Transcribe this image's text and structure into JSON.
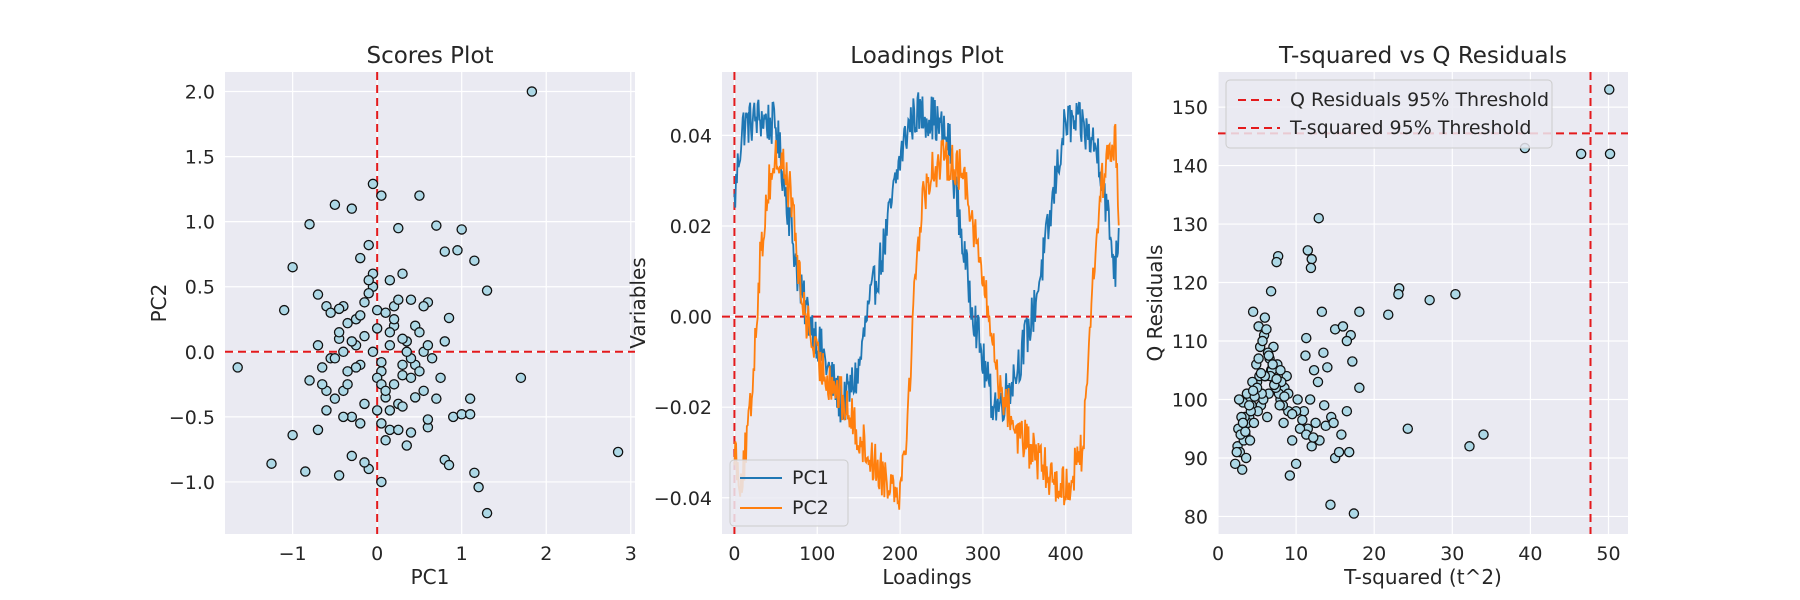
{
  "colors": {
    "axes_bg": "#eaeaf2",
    "grid": "#ffffff",
    "reference": "#e41a1c",
    "points_fill": "#add8e6",
    "points_edge": "#111111",
    "pc1": "#1f77b4",
    "pc2": "#ff7f0e"
  },
  "chart_data": [
    {
      "type": "scatter",
      "title": "Scores Plot",
      "xlabel": "PC1",
      "ylabel": "PC2",
      "xlim": [
        -1.8,
        3.05
      ],
      "ylim": [
        -1.4,
        2.15
      ],
      "xticks": [
        -1,
        0,
        1,
        2,
        3
      ],
      "xtick_labels": [
        "−1",
        "0",
        "1",
        "2",
        "3"
      ],
      "yticks": [
        -1.0,
        -0.5,
        0.0,
        0.5,
        1.0,
        1.5,
        2.0
      ],
      "ytick_labels": [
        "−1.0",
        "−0.5",
        "0.0",
        "0.5",
        "1.0",
        "1.5",
        "2.0"
      ],
      "reference_lines": {
        "x": 0,
        "y": 0
      },
      "grid": true,
      "points": {
        "x": [
          1.83,
          -0.05,
          0.05,
          0.5,
          -0.5,
          -0.3,
          -0.8,
          1.0,
          0.7,
          -1.0,
          0.25,
          -0.7,
          0.8,
          1.15,
          -0.1,
          0.3,
          1.3,
          -0.4,
          -0.2,
          0.15,
          0.6,
          -0.6,
          0.0,
          0.4,
          -0.35,
          0.1,
          -0.15,
          -1.1,
          -0.45,
          0.2,
          0.35,
          -0.25,
          0.55,
          0.85,
          -0.55,
          -0.05,
          0.45,
          -0.65,
          0.05,
          0.3,
          -0.8,
          1.7,
          -0.4,
          2.85,
          -1.65,
          -1.25,
          -1.0,
          -0.45,
          0.15,
          0.6,
          0.9,
          1.1,
          -0.3,
          0.0,
          0.25,
          -0.2,
          0.7,
          -0.6,
          0.4,
          -0.1,
          0.1,
          -0.5,
          0.35,
          0.8,
          -0.3,
          0.05,
          -0.15,
          0.5,
          -0.7,
          0.2,
          0.65,
          1.15,
          1.2,
          1.3,
          0.85,
          1.0,
          -0.85,
          -0.35,
          -0.05,
          0.3,
          0.15,
          -0.45,
          0.55,
          -0.25,
          0.0,
          0.4,
          -0.55,
          0.2,
          -0.1,
          0.1,
          -0.4,
          0.3,
          -0.2,
          0.05,
          0.6,
          -0.6,
          0.45,
          -0.35,
          0.25,
          -0.15,
          0.75,
          0.5,
          -0.5,
          0.15,
          -0.05,
          0.35,
          -0.3,
          0.1,
          -0.25,
          0.2,
          0.0,
          -0.45,
          0.55,
          -0.7,
          0.4,
          0.3,
          -0.1,
          0.05,
          -0.4,
          0.15,
          0.95,
          0.8,
          -0.2,
          0.6,
          0.05,
          -0.65,
          1.1,
          0.25,
          -0.15,
          0.45
        ],
        "y": [
          2.0,
          1.29,
          1.2,
          1.2,
          1.13,
          1.1,
          0.98,
          0.94,
          0.97,
          0.65,
          0.95,
          0.44,
          0.77,
          0.7,
          0.82,
          0.6,
          0.47,
          0.35,
          0.72,
          0.55,
          0.38,
          0.35,
          0.32,
          0.4,
          0.22,
          0.3,
          0.12,
          0.32,
          0.1,
          0.2,
          0.08,
          0.05,
          0.0,
          0.26,
          -0.05,
          0.0,
          -0.1,
          -0.12,
          -0.15,
          -0.18,
          -0.22,
          -0.2,
          -0.3,
          -0.77,
          -0.12,
          -0.86,
          -0.64,
          -0.95,
          -0.6,
          -0.58,
          -0.5,
          -0.36,
          -0.5,
          -0.45,
          -0.4,
          -0.55,
          -0.36,
          -0.45,
          -0.62,
          -0.9,
          -0.68,
          -0.36,
          -0.72,
          -0.83,
          -0.8,
          -1.0,
          -0.85,
          -0.15,
          -0.6,
          -0.25,
          -0.05,
          -0.93,
          -1.04,
          -1.24,
          -0.87,
          -0.48,
          -0.92,
          -0.25,
          0.5,
          -0.1,
          0.05,
          0.15,
          -0.3,
          0.25,
          -0.2,
          -0.05,
          0.3,
          0.35,
          0.45,
          -0.35,
          0.0,
          0.1,
          -0.1,
          -0.25,
          0.05,
          -0.3,
          0.2,
          -0.15,
          0.4,
          -0.4,
          -0.2,
          0.15,
          -0.05,
          -0.45,
          0.6,
          0.0,
          0.08,
          -0.3,
          -0.12,
          0.25,
          0.18,
          0.33,
          0.35,
          0.05,
          -0.2,
          -0.42,
          0.55,
          -0.08,
          -0.5,
          0.15,
          0.78,
          0.08,
          0.28,
          -0.52,
          -0.55,
          -0.25,
          -0.48,
          -0.6,
          0.38,
          -0.35
        ]
      }
    },
    {
      "type": "line",
      "title": "Loadings Plot",
      "xlabel": "Loadings",
      "ylabel": "Variables",
      "xlim": [
        -15,
        480
      ],
      "ylim": [
        -0.048,
        0.054
      ],
      "xticks": [
        0,
        100,
        200,
        300,
        400
      ],
      "xtick_labels": [
        "0",
        "100",
        "200",
        "300",
        "400"
      ],
      "yticks": [
        -0.04,
        -0.02,
        0.0,
        0.02,
        0.04
      ],
      "ytick_labels": [
        "−0.04",
        "−0.02",
        "0.00",
        "0.02",
        "0.04"
      ],
      "reference_lines": {
        "x": 0,
        "y": 0
      },
      "grid": true,
      "legend_position": "lower-left",
      "n_points": 465,
      "series": [
        {
          "name": "PC1",
          "x_keys": [
            0,
            5,
            10,
            30,
            50,
            60,
            80,
            110,
            130,
            150,
            160,
            180,
            200,
            210,
            220,
            240,
            260,
            280,
            300,
            310,
            320,
            340,
            360,
            380,
            390,
            400,
            420,
            440,
            460,
            464
          ],
          "y_keys": [
            0.025,
            0.035,
            0.042,
            0.044,
            0.042,
            0.03,
            0.005,
            -0.01,
            -0.02,
            -0.012,
            0.0,
            0.015,
            0.035,
            0.042,
            0.045,
            0.044,
            0.038,
            0.01,
            -0.01,
            -0.018,
            -0.02,
            -0.012,
            0.0,
            0.02,
            0.033,
            0.043,
            0.042,
            0.036,
            0.01,
            0.02
          ],
          "noise": 0.005
        },
        {
          "name": "PC2",
          "x_keys": [
            0,
            5,
            10,
            20,
            30,
            40,
            50,
            60,
            70,
            80,
            100,
            120,
            140,
            160,
            180,
            200,
            210,
            220,
            230,
            240,
            260,
            280,
            300,
            320,
            340,
            360,
            380,
            400,
            420,
            430,
            440,
            450,
            460,
            464
          ],
          "y_keys": [
            -0.028,
            -0.035,
            -0.035,
            -0.02,
            0.01,
            0.028,
            0.035,
            0.033,
            0.025,
            0.005,
            -0.01,
            -0.015,
            -0.022,
            -0.03,
            -0.035,
            -0.038,
            -0.02,
            0.015,
            0.028,
            0.033,
            0.035,
            0.03,
            0.008,
            -0.015,
            -0.025,
            -0.03,
            -0.035,
            -0.038,
            -0.03,
            0.0,
            0.025,
            0.035,
            0.038,
            0.025
          ],
          "noise": 0.005
        }
      ]
    },
    {
      "type": "scatter",
      "title": "T-squared vs Q Residuals",
      "xlabel": "T-squared (t^2)",
      "ylabel": "Q Residuals",
      "xlim": [
        0,
        52.5
      ],
      "ylim": [
        77,
        156
      ],
      "xticks": [
        0,
        10,
        20,
        30,
        40,
        50
      ],
      "xtick_labels": [
        "0",
        "10",
        "20",
        "30",
        "40",
        "50"
      ],
      "yticks": [
        80,
        90,
        100,
        110,
        120,
        130,
        140,
        150
      ],
      "ytick_labels": [
        "80",
        "90",
        "100",
        "110",
        "120",
        "130",
        "140",
        "150"
      ],
      "grid": true,
      "legend_position": "upper-left",
      "thresholds": [
        {
          "name": "Q Residuals 95% Threshold",
          "axis": "y",
          "value": 145.5
        },
        {
          "name": "T-squared 95% Threshold",
          "axis": "x",
          "value": 47.7
        }
      ],
      "points": {
        "x": [
          50.1,
          39.3,
          46.5,
          50.2,
          12.9,
          11.5,
          12.0,
          11.9,
          7.7,
          7.5,
          23.2,
          23.1,
          27.1,
          30.4,
          21.8,
          18.1,
          4.5,
          6.0,
          6.8,
          5.2,
          11.3,
          13.3,
          15.0,
          16.0,
          17.0,
          13.5,
          14.0,
          16.5,
          17.2,
          18.1,
          24.3,
          32.2,
          34.0,
          14.4,
          17.4,
          15.0,
          9.2,
          10.0,
          2.5,
          3.0,
          3.5,
          4.0,
          4.5,
          5.0,
          5.5,
          6.0,
          6.5,
          7.0,
          7.5,
          8.0,
          8.5,
          9.0,
          2.2,
          2.8,
          3.3,
          3.8,
          4.3,
          4.8,
          5.3,
          5.8,
          6.3,
          6.8,
          7.3,
          7.8,
          8.3,
          8.8,
          2.6,
          3.1,
          3.6,
          4.1,
          4.6,
          5.1,
          5.6,
          6.1,
          6.6,
          7.1,
          7.6,
          8.1,
          2.4,
          2.9,
          3.4,
          3.9,
          4.4,
          4.9,
          5.4,
          5.9,
          6.4,
          6.9,
          7.4,
          7.9,
          8.4,
          3.2,
          3.7,
          4.2,
          4.7,
          5.2,
          5.7,
          6.2,
          6.7,
          7.2,
          11.0,
          11.5,
          12.0,
          12.5,
          13.0,
          14.5,
          15.5,
          16.5,
          10.5,
          11.8,
          12.3,
          10.2,
          13.8,
          11.2,
          9.5,
          12.8,
          13.6,
          14.8,
          15.8,
          16.8,
          3.0,
          3.5,
          4.0,
          5.0,
          6.0,
          7.0,
          8.0,
          9.0,
          10.0,
          2.7,
          3.2,
          4.5,
          5.5,
          6.5,
          7.5,
          8.5,
          9.5,
          10.8,
          11.3,
          12.2
        ],
        "y": [
          153.0,
          143.0,
          142.0,
          142.0,
          131.0,
          125.5,
          124.0,
          122.5,
          124.5,
          123.5,
          119.0,
          118.0,
          117.0,
          118.0,
          114.5,
          115.0,
          115.0,
          114.0,
          118.5,
          112.5,
          110.5,
          115.0,
          112.0,
          112.5,
          111.0,
          108.0,
          105.5,
          110.0,
          106.5,
          102.0,
          95.0,
          92.0,
          94.0,
          82.0,
          80.5,
          90.0,
          87.0,
          89.0,
          92.0,
          95.0,
          94.0,
          97.0,
          101.0,
          103.0,
          99.0,
          104.0,
          101.0,
          106.0,
          103.0,
          100.0,
          102.0,
          98.0,
          89.0,
          91.0,
          93.0,
          96.0,
          99.0,
          102.0,
          104.0,
          100.0,
          97.0,
          105.0,
          103.0,
          101.0,
          99.0,
          104.0,
          95.0,
          88.0,
          90.0,
          93.0,
          96.0,
          98.0,
          101.0,
          104.0,
          107.0,
          109.0,
          106.0,
          103.0,
          91.0,
          94.0,
          97.0,
          100.0,
          103.0,
          106.0,
          109.0,
          111.0,
          108.0,
          105.0,
          102.0,
          99.0,
          96.0,
          99.5,
          101.0,
          98.0,
          100.5,
          107.0,
          110.0,
          112.0,
          104.0,
          102.5,
          98.0,
          95.0,
          92.0,
          96.0,
          93.0,
          97.0,
          91.0,
          98.0,
          95.0,
          100.0,
          105.0,
          100.0,
          95.5,
          107.5,
          93.0,
          103.0,
          99.0,
          96.0,
          94.0,
          91.0,
          97.0,
          94.5,
          99.0,
          102.0,
          104.0,
          106.0,
          105.0,
          101.0,
          98.0,
          100.0,
          96.0,
          101.5,
          104.5,
          107.5,
          103.5,
          100.5,
          97.5,
          96.5,
          94.0,
          93.5
        ]
      }
    }
  ]
}
